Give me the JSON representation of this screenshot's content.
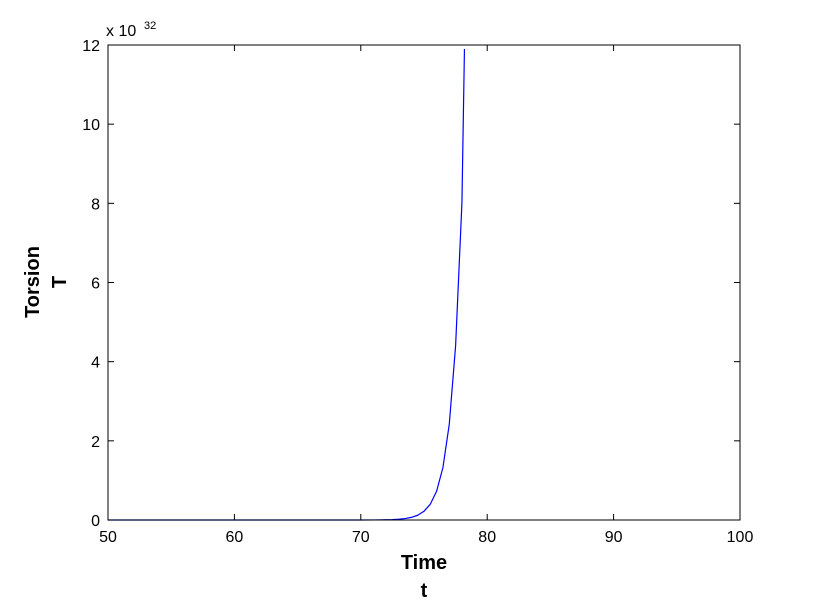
{
  "chart_data": {
    "type": "line",
    "title": "",
    "xlabel": [
      "Time",
      "t"
    ],
    "ylabel": [
      "Torsion",
      "T"
    ],
    "xlim": [
      50,
      100
    ],
    "ylim": [
      0,
      12
    ],
    "x_ticks": [
      "50",
      "60",
      "70",
      "80",
      "90",
      "100"
    ],
    "y_ticks": [
      "0",
      "2",
      "4",
      "6",
      "8",
      "10",
      "12"
    ],
    "y_multiplier": {
      "base": "x 10",
      "exponent": "32"
    },
    "grid": false,
    "legend": "none",
    "series": [
      {
        "color": "#0000ff",
        "x": [
          50,
          60,
          70,
          71,
          72,
          72.5,
          73,
          73.5,
          74,
          74.5,
          75,
          75.5,
          76,
          76.5,
          77,
          77.5,
          78,
          78.2
        ],
        "y": [
          0,
          0,
          0,
          0.002,
          0.006,
          0.011,
          0.02,
          0.036,
          0.066,
          0.12,
          0.22,
          0.4,
          0.73,
          1.33,
          2.42,
          4.4,
          8.0,
          11.9
        ]
      }
    ]
  }
}
